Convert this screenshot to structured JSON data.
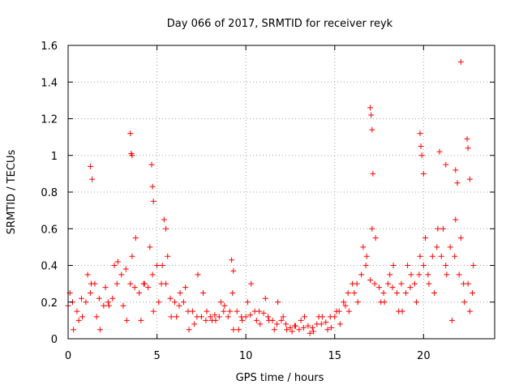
{
  "chart_data": {
    "type": "scatter",
    "title": "Day 066 of 2017, SRMTID for receiver reyk",
    "xlabel": "GPS time / hours",
    "ylabel": "SRMTID / TECUs",
    "xlim": [
      0,
      24
    ],
    "ylim": [
      0,
      1.6
    ],
    "xticks": [
      0,
      5,
      10,
      15,
      20
    ],
    "xtick_labels": [
      "0",
      "5",
      "10",
      "15",
      "20"
    ],
    "yticks": [
      0,
      0.2,
      0.4,
      0.6,
      0.8,
      1.0,
      1.2,
      1.4,
      1.6
    ],
    "ytick_labels": [
      "0",
      "0.2",
      "0.4",
      "0.6",
      "0.8",
      "1",
      "1.2",
      "1.4",
      "1.6"
    ],
    "grid": true,
    "marker": "+",
    "color": "#ff0000",
    "series": [
      {
        "name": "reyk",
        "x": [
          0.0,
          0.25,
          0.5,
          0.75,
          1.0,
          1.25,
          1.5,
          1.75,
          2.0,
          2.25,
          2.5,
          2.75,
          3.0,
          3.25,
          3.5,
          3.75,
          4.0,
          4.25,
          4.5,
          4.75,
          5.0,
          5.25,
          5.5,
          5.75,
          6.0,
          6.25,
          6.5,
          6.75,
          7.0,
          7.25,
          7.5,
          7.75,
          8.0,
          8.25,
          8.5,
          8.75,
          9.0,
          9.25,
          9.5,
          9.75,
          10.0,
          10.25,
          10.5,
          10.75,
          11.0,
          11.25,
          11.5,
          11.75,
          12.0,
          12.25,
          12.5,
          12.75,
          13.0,
          13.25,
          13.5,
          13.75,
          14.0,
          14.25,
          14.5,
          14.75,
          15.0,
          15.25,
          15.5,
          15.75,
          16.0,
          16.25,
          16.5,
          16.75,
          17.0,
          17.25,
          17.5,
          17.75,
          18.0,
          18.25,
          18.5,
          18.75,
          19.0,
          19.25,
          19.5,
          19.75,
          20.0,
          20.25,
          20.5,
          20.75,
          21.0,
          21.25,
          21.5,
          21.75,
          22.0,
          22.25,
          22.5,
          22.75,
          1.25,
          1.35,
          3.5,
          3.55,
          3.6,
          4.7,
          4.75,
          4.8,
          5.4,
          5.5,
          9.2,
          9.3,
          17.0,
          17.05,
          17.1,
          17.15,
          19.8,
          19.85,
          19.9,
          20.0,
          20.9,
          21.25,
          21.8,
          21.9,
          22.1,
          22.45,
          22.5,
          22.6,
          0.1,
          0.6,
          1.1,
          1.6,
          2.1,
          2.6,
          3.1,
          3.6,
          4.1,
          4.6,
          5.1,
          5.6,
          6.1,
          6.6,
          7.1,
          7.6,
          8.1,
          8.6,
          9.1,
          9.6,
          10.1,
          10.6,
          11.1,
          11.6,
          12.1,
          12.6,
          13.1,
          13.6,
          14.1,
          14.6,
          15.1,
          15.6,
          16.1,
          16.6,
          17.1,
          17.6,
          18.1,
          18.6,
          19.1,
          19.6,
          20.1,
          20.6,
          21.1,
          21.6,
          22.1,
          22.6,
          0.3,
          0.8,
          1.3,
          1.8,
          2.3,
          2.8,
          3.3,
          3.8,
          4.3,
          4.8,
          5.3,
          5.8,
          6.3,
          6.8,
          7.3,
          7.8,
          8.3,
          8.8,
          9.3,
          9.8,
          10.3,
          10.8,
          11.3,
          11.8,
          12.3,
          12.8,
          13.3,
          13.8,
          14.3,
          14.8,
          15.3,
          15.8,
          16.3,
          16.8,
          17.3,
          17.8,
          18.3,
          18.8,
          19.3,
          19.8,
          20.3,
          20.8,
          21.3,
          21.8,
          22.3,
          22.8
        ],
        "y": [
          0.18,
          0.2,
          0.15,
          0.22,
          0.2,
          0.25,
          0.3,
          0.22,
          0.18,
          0.2,
          0.22,
          0.3,
          0.35,
          0.38,
          0.3,
          0.28,
          0.25,
          0.3,
          0.28,
          0.35,
          0.4,
          0.3,
          0.3,
          0.22,
          0.2,
          0.18,
          0.2,
          0.15,
          0.15,
          0.12,
          0.12,
          0.1,
          0.12,
          0.13,
          0.12,
          0.15,
          0.12,
          0.25,
          0.15,
          0.12,
          0.12,
          0.13,
          0.15,
          0.15,
          0.14,
          0.12,
          0.1,
          0.08,
          0.1,
          0.08,
          0.06,
          0.07,
          0.05,
          0.06,
          0.07,
          0.06,
          0.08,
          0.08,
          0.09,
          0.12,
          0.12,
          0.15,
          0.2,
          0.25,
          0.3,
          0.3,
          0.35,
          0.4,
          0.32,
          0.3,
          0.28,
          0.25,
          0.3,
          0.28,
          0.25,
          0.3,
          0.25,
          0.28,
          0.3,
          0.35,
          0.4,
          0.35,
          0.45,
          0.5,
          0.45,
          0.4,
          0.5,
          0.45,
          0.35,
          0.3,
          0.3,
          0.25,
          0.94,
          0.87,
          1.12,
          1.01,
          1.0,
          0.95,
          0.83,
          0.75,
          0.65,
          0.6,
          0.43,
          0.37,
          1.26,
          1.22,
          1.14,
          0.9,
          1.12,
          1.05,
          1.0,
          0.9,
          1.02,
          0.95,
          0.92,
          0.85,
          1.51,
          1.09,
          1.04,
          0.87,
          0.25,
          0.1,
          0.35,
          0.12,
          0.28,
          0.4,
          0.18,
          0.45,
          0.1,
          0.5,
          0.2,
          0.45,
          0.12,
          0.28,
          0.08,
          0.25,
          0.1,
          0.2,
          0.15,
          0.05,
          0.2,
          0.1,
          0.22,
          0.05,
          0.12,
          0.04,
          0.1,
          0.03,
          0.12,
          0.05,
          0.15,
          0.18,
          0.25,
          0.5,
          0.6,
          0.2,
          0.35,
          0.15,
          0.4,
          0.2,
          0.55,
          0.25,
          0.6,
          0.1,
          0.55,
          0.15,
          0.05,
          0.12,
          0.3,
          0.05,
          0.18,
          0.42,
          0.1,
          0.55,
          0.3,
          0.15,
          0.4,
          0.12,
          0.25,
          0.05,
          0.35,
          0.15,
          0.1,
          0.18,
          0.05,
          0.1,
          0.3,
          0.08,
          0.1,
          0.2,
          0.05,
          0.07,
          0.12,
          0.04,
          0.12,
          0.06,
          0.08,
          0.15,
          0.2,
          0.45,
          0.55,
          0.2,
          0.4,
          0.15,
          0.35,
          0.45,
          0.3,
          0.6,
          0.35,
          0.65,
          0.2,
          0.4
        ]
      }
    ]
  }
}
